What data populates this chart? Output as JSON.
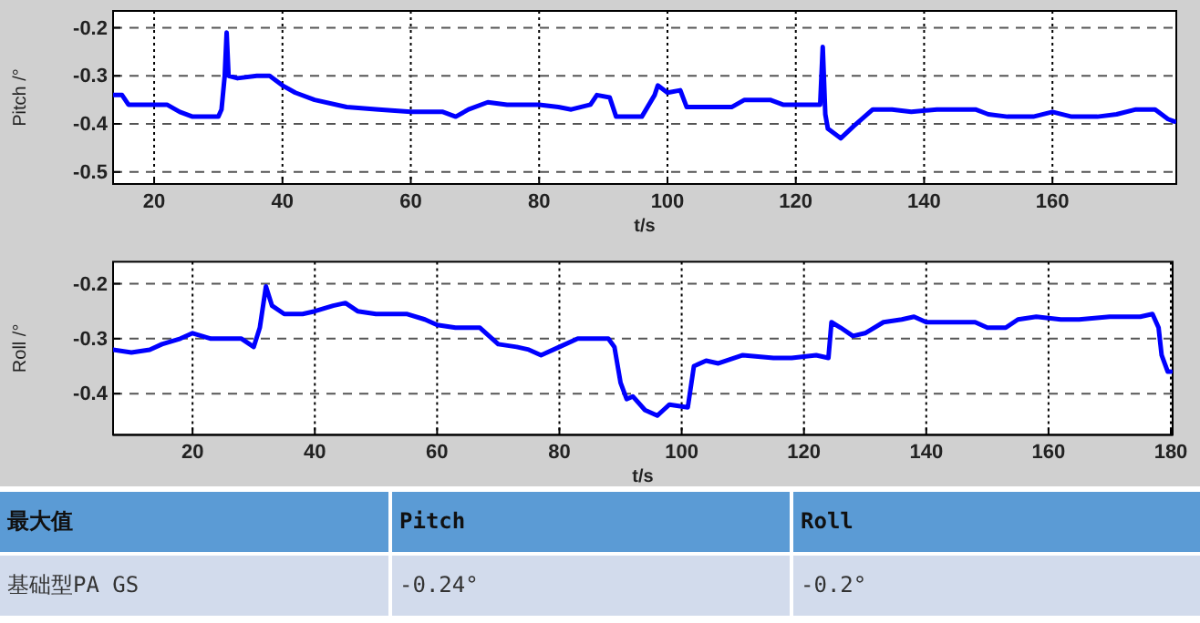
{
  "chart_data": [
    {
      "type": "line",
      "xlabel": "t/s",
      "ylabel": "Pitch /°",
      "xlim": [
        13.6,
        179.3
      ],
      "ylim": [
        -0.525,
        -0.165
      ],
      "xticks": [
        20,
        40,
        60,
        80,
        100,
        120,
        140,
        160
      ],
      "yticks": [
        -0.2,
        -0.3,
        -0.4,
        -0.5
      ],
      "grid": true,
      "line_style": "solid",
      "marker": "none",
      "series": [
        {
          "color": "#0000ff",
          "x": [
            13.6,
            15,
            16,
            20,
            22,
            24,
            26,
            30,
            30.5,
            31,
            31.3,
            31.6,
            33,
            36,
            38,
            40,
            42,
            45,
            50,
            55,
            60,
            65,
            67,
            69,
            72,
            75,
            78,
            80,
            83,
            85,
            88,
            89,
            91,
            92,
            96,
            98,
            98.5,
            100,
            102,
            103,
            106,
            110,
            112,
            116,
            118,
            123,
            123.8,
            124.2,
            124.6,
            125,
            127,
            129,
            132,
            135,
            138,
            142,
            145,
            148,
            150,
            153,
            157,
            160,
            163,
            167,
            170,
            173,
            176,
            178,
            179
          ],
          "values": [
            -0.34,
            -0.34,
            -0.36,
            -0.36,
            -0.36,
            -0.375,
            -0.385,
            -0.385,
            -0.37,
            -0.3,
            -0.21,
            -0.3,
            -0.305,
            -0.3,
            -0.3,
            -0.32,
            -0.335,
            -0.35,
            -0.365,
            -0.37,
            -0.375,
            -0.375,
            -0.385,
            -0.37,
            -0.355,
            -0.36,
            -0.36,
            -0.36,
            -0.365,
            -0.37,
            -0.36,
            -0.34,
            -0.345,
            -0.385,
            -0.385,
            -0.34,
            -0.32,
            -0.335,
            -0.33,
            -0.365,
            -0.365,
            -0.365,
            -0.35,
            -0.35,
            -0.36,
            -0.36,
            -0.36,
            -0.24,
            -0.38,
            -0.41,
            -0.43,
            -0.405,
            -0.37,
            -0.37,
            -0.375,
            -0.37,
            -0.37,
            -0.37,
            -0.38,
            -0.385,
            -0.385,
            -0.375,
            -0.385,
            -0.385,
            -0.38,
            -0.37,
            -0.37,
            -0.39,
            -0.395
          ]
        }
      ]
    },
    {
      "type": "line",
      "xlabel": "t/s",
      "ylabel": "Roll /°",
      "xlim": [
        7,
        180.3
      ],
      "ylim": [
        -0.475,
        -0.16
      ],
      "xticks": [
        20,
        40,
        60,
        80,
        100,
        120,
        140,
        160,
        180
      ],
      "yticks": [
        -0.2,
        -0.3,
        -0.4
      ],
      "grid": true,
      "line_style": "solid",
      "marker": "none",
      "series": [
        {
          "color": "#0000ff",
          "x": [
            7,
            10,
            13,
            15,
            18,
            20,
            23,
            25,
            28,
            30,
            31,
            32,
            33,
            35,
            38,
            40,
            43,
            45,
            47,
            50,
            55,
            58,
            60,
            63,
            67,
            70,
            73,
            75,
            77,
            80,
            83,
            86,
            88,
            89,
            90,
            91,
            92,
            94,
            96,
            97,
            98,
            101,
            102,
            104,
            106,
            110,
            115,
            118,
            122,
            124,
            124.5,
            126,
            128,
            130,
            133,
            136,
            138,
            140,
            145,
            148,
            150,
            153,
            155,
            158,
            162,
            165,
            170,
            175,
            177,
            178,
            178.5,
            179.5,
            180
          ],
          "values": [
            -0.32,
            -0.325,
            -0.32,
            -0.31,
            -0.3,
            -0.29,
            -0.3,
            -0.3,
            -0.3,
            -0.315,
            -0.28,
            -0.205,
            -0.24,
            -0.255,
            -0.255,
            -0.25,
            -0.24,
            -0.235,
            -0.25,
            -0.255,
            -0.255,
            -0.265,
            -0.275,
            -0.28,
            -0.28,
            -0.31,
            -0.315,
            -0.32,
            -0.33,
            -0.315,
            -0.3,
            -0.3,
            -0.3,
            -0.315,
            -0.38,
            -0.41,
            -0.405,
            -0.43,
            -0.44,
            -0.43,
            -0.42,
            -0.425,
            -0.35,
            -0.34,
            -0.345,
            -0.33,
            -0.335,
            -0.335,
            -0.33,
            -0.335,
            -0.27,
            -0.28,
            -0.295,
            -0.29,
            -0.27,
            -0.265,
            -0.26,
            -0.27,
            -0.27,
            -0.27,
            -0.28,
            -0.28,
            -0.265,
            -0.26,
            -0.265,
            -0.265,
            -0.26,
            -0.26,
            -0.255,
            -0.28,
            -0.33,
            -0.36,
            -0.36
          ]
        }
      ]
    },
    {
      "type": "other",
      "annotations": [
        "最大值",
        "Pitch",
        "Roll",
        "基础型PA GS",
        "-0.24°",
        "-0.2°"
      ]
    }
  ]
}
